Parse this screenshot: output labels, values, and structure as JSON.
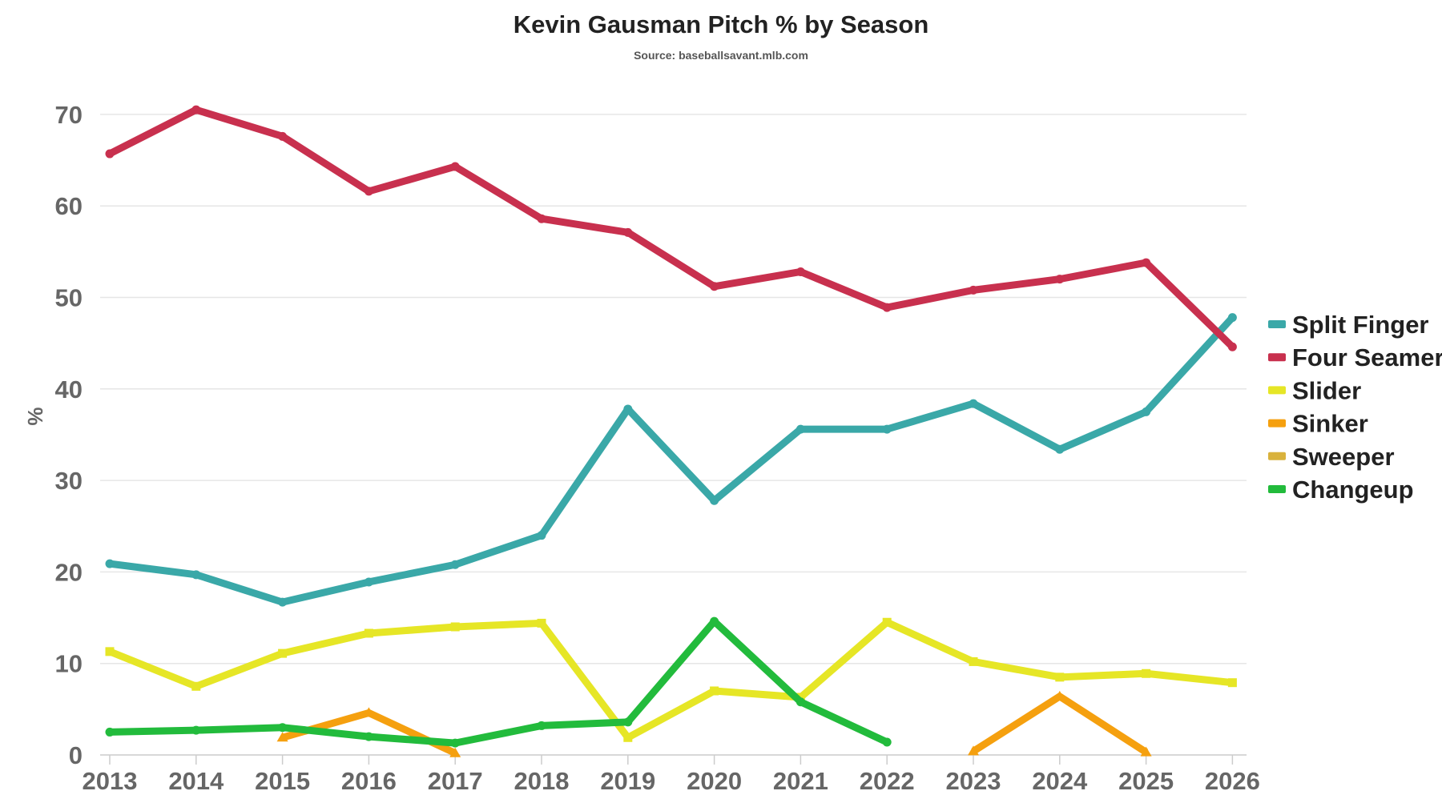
{
  "chart_data": {
    "type": "line",
    "title": "Kevin Gausman Pitch % by Season",
    "subtitle": "Source: baseballsavant.mlb.com",
    "xlabel": "",
    "ylabel": "%",
    "x": [
      "2013",
      "2014",
      "2015",
      "2016",
      "2017",
      "2018",
      "2019",
      "2020",
      "2021",
      "2022",
      "2023",
      "2024",
      "2025",
      "2026"
    ],
    "yticks": [
      "0",
      "10",
      "20",
      "30",
      "40",
      "50",
      "60",
      "70"
    ],
    "ylim": [
      0,
      72
    ],
    "grid": true,
    "legend_position": "right",
    "series": [
      {
        "name": "Split Finger",
        "color": "#3aa8a8",
        "values": [
          20.9,
          19.7,
          16.7,
          18.9,
          20.8,
          24.0,
          37.8,
          27.8,
          35.6,
          35.6,
          38.4,
          33.4,
          37.5,
          47.8
        ]
      },
      {
        "name": "Four Seamer",
        "color": "#c8304e",
        "values": [
          65.7,
          70.5,
          67.6,
          61.6,
          64.3,
          58.6,
          57.1,
          51.2,
          52.8,
          48.9,
          50.8,
          52.0,
          53.8,
          44.6
        ]
      },
      {
        "name": "Slider",
        "color": "#e6e626",
        "values": [
          11.3,
          7.5,
          11.1,
          13.3,
          14.0,
          14.4,
          1.9,
          7.0,
          6.3,
          14.5,
          10.2,
          8.5,
          8.9,
          7.9
        ]
      },
      {
        "name": "Sinker",
        "color": "#f5a00f",
        "values": [
          null,
          null,
          1.9,
          4.6,
          0.2,
          null,
          null,
          null,
          null,
          null,
          0.4,
          6.4,
          0.3,
          null
        ]
      },
      {
        "name": "Sweeper",
        "color": "#d9b23c",
        "values": [
          null,
          null,
          null,
          null,
          null,
          null,
          null,
          null,
          null,
          null,
          null,
          null,
          null,
          null
        ]
      },
      {
        "name": "Changeup",
        "color": "#22bb3c",
        "values": [
          2.5,
          2.7,
          3.0,
          2.0,
          1.3,
          3.2,
          3.6,
          14.6,
          5.8,
          1.4,
          null,
          null,
          null,
          null
        ]
      }
    ]
  }
}
